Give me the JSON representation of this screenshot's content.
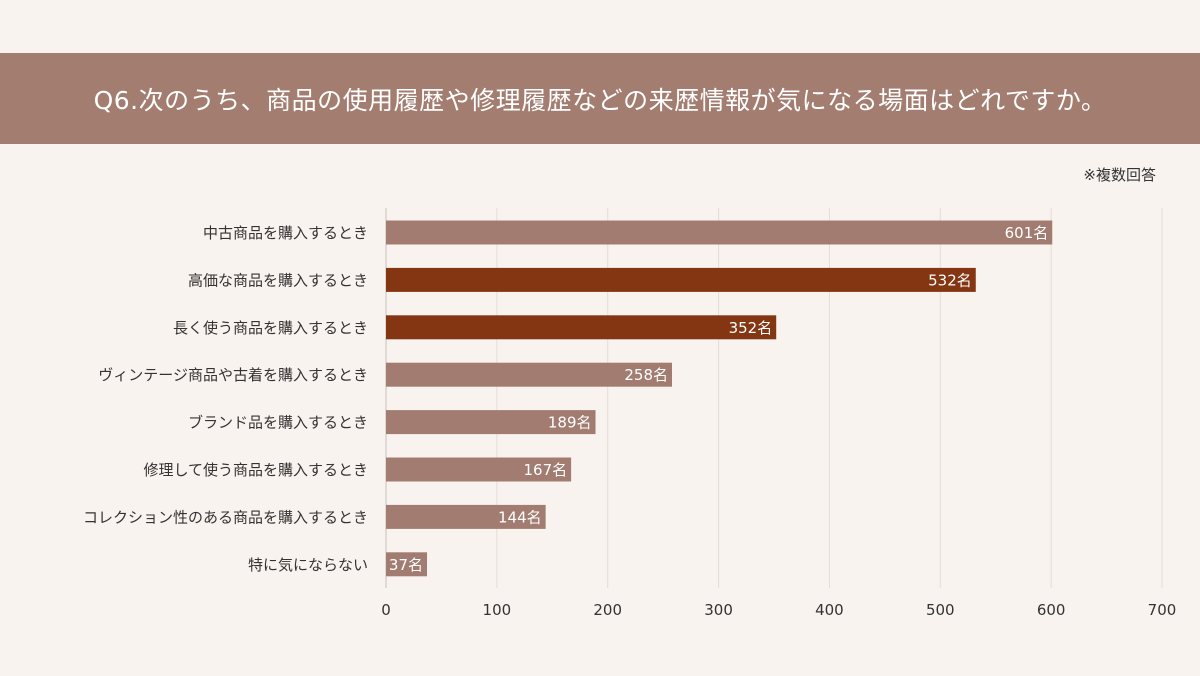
{
  "header": {
    "title": "Q6.次のうち、商品の使用履歴や修理履歴などの来歴情報が気になる場面はどれですか。"
  },
  "note": "※複数回答",
  "colors": {
    "title_band": "#a37d70",
    "bar_default": "#a27c70",
    "bar_highlight": "#843512",
    "background": "#f9f3ef"
  },
  "chart_data": {
    "type": "bar",
    "orientation": "horizontal",
    "categories": [
      "中古商品を購入するとき",
      "高価な商品を購入するとき",
      "長く使う商品を購入するとき",
      "ヴィンテージ商品や古着を購入するとき",
      "ブランド品を購入するとき",
      "修理して使う商品を購入するとき",
      "コレクション性のある商品を購入するとき",
      "特に気にならない"
    ],
    "values": [
      601,
      532,
      352,
      258,
      189,
      167,
      144,
      37
    ],
    "highlighted": [
      false,
      true,
      true,
      false,
      false,
      false,
      false,
      false
    ],
    "value_suffix": "名",
    "xlim": [
      0,
      700
    ],
    "xticks": [
      0,
      100,
      200,
      300,
      400,
      500,
      600,
      700
    ],
    "grid": true
  }
}
